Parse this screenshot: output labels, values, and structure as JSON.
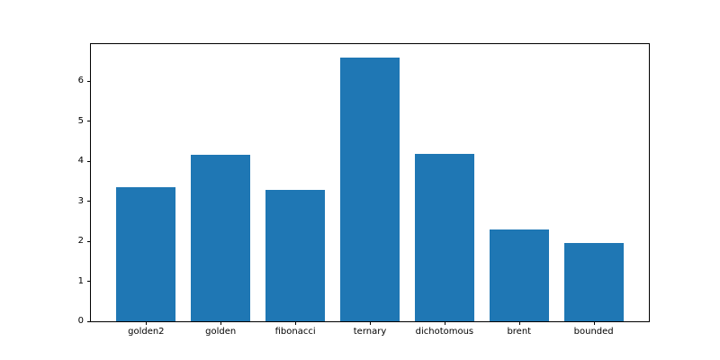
{
  "chart_data": {
    "type": "bar",
    "title": "",
    "xlabel": "",
    "ylabel": "",
    "categories": [
      "golden2",
      "golden",
      "fibonacci",
      "ternary",
      "dichotomous",
      "brent",
      "bounded"
    ],
    "values": [
      3.36,
      4.16,
      3.28,
      6.59,
      4.18,
      2.29,
      1.95
    ],
    "yticks": [
      0,
      1,
      2,
      3,
      4,
      5,
      6
    ],
    "ylim": [
      0,
      6.93
    ],
    "xlim": [
      -0.74,
      6.74
    ],
    "bar_width_fraction": 0.8,
    "grid": false,
    "legend": null,
    "colors": {
      "bar": "#1f77b4",
      "spine": "#000000",
      "tick_text": "#000000",
      "background": "#ffffff"
    }
  }
}
